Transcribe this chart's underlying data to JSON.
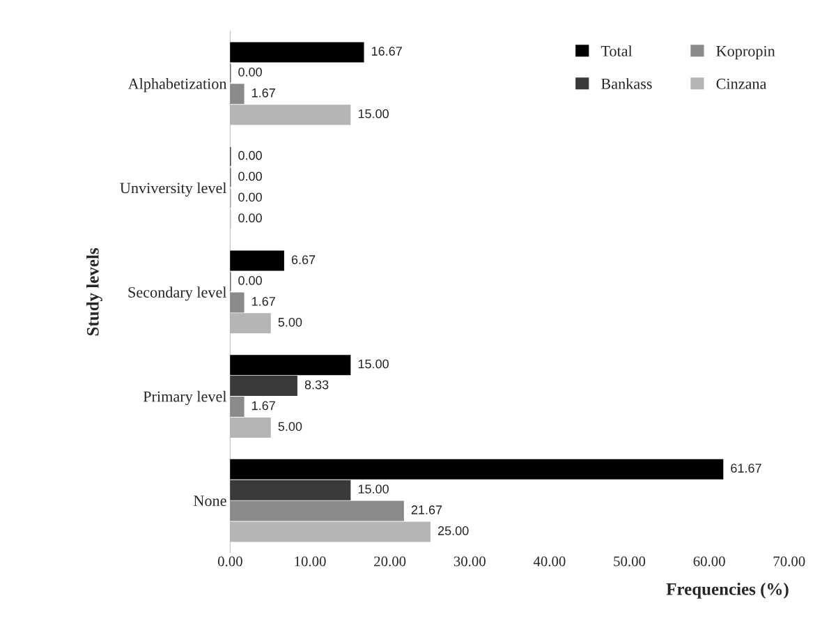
{
  "chart_data": {
    "type": "bar",
    "orientation": "horizontal",
    "xlabel": "Frequencies (%)",
    "ylabel": "Study levels",
    "categories": [
      "Alphabetization",
      "Unviversity level",
      "Secondary level",
      "Primary level",
      "None"
    ],
    "series": [
      {
        "name": "Total",
        "color": "#000000",
        "values": [
          16.67,
          0.0,
          6.67,
          15.0,
          61.67
        ],
        "value_labels": [
          "16.67",
          "0.00",
          "6.67",
          "15.00",
          "61.67"
        ]
      },
      {
        "name": "Bankass",
        "color": "#3a3a3a",
        "values": [
          0.0,
          0.0,
          0.0,
          8.33,
          15.0
        ],
        "value_labels": [
          "0.00",
          "0.00",
          "0.00",
          "8.33",
          "15.00"
        ]
      },
      {
        "name": "Kopropin",
        "color": "#8a8a8a",
        "values": [
          1.67,
          0.0,
          1.67,
          1.67,
          21.67
        ],
        "value_labels": [
          "1.67",
          "0.00",
          "1.67",
          "1.67",
          "21.67"
        ]
      },
      {
        "name": "Cinzana",
        "color": "#b5b5b5",
        "values": [
          15.0,
          0.0,
          5.0,
          5.0,
          25.0
        ],
        "value_labels": [
          "15.00",
          "0.00",
          "5.00",
          "5.00",
          "25.00"
        ]
      }
    ],
    "xlim": [
      0,
      70
    ],
    "xticks": [
      {
        "value": 0,
        "label": "0.00"
      },
      {
        "value": 10,
        "label": "10.00"
      },
      {
        "value": 20,
        "label": "20.00"
      },
      {
        "value": 30,
        "label": "30.00"
      },
      {
        "value": 40,
        "label": "40.00"
      },
      {
        "value": 50,
        "label": "50.00"
      },
      {
        "value": 60,
        "label": "60.00"
      },
      {
        "value": 70,
        "label": "70.00"
      }
    ],
    "legend": "top right",
    "grid": false
  }
}
